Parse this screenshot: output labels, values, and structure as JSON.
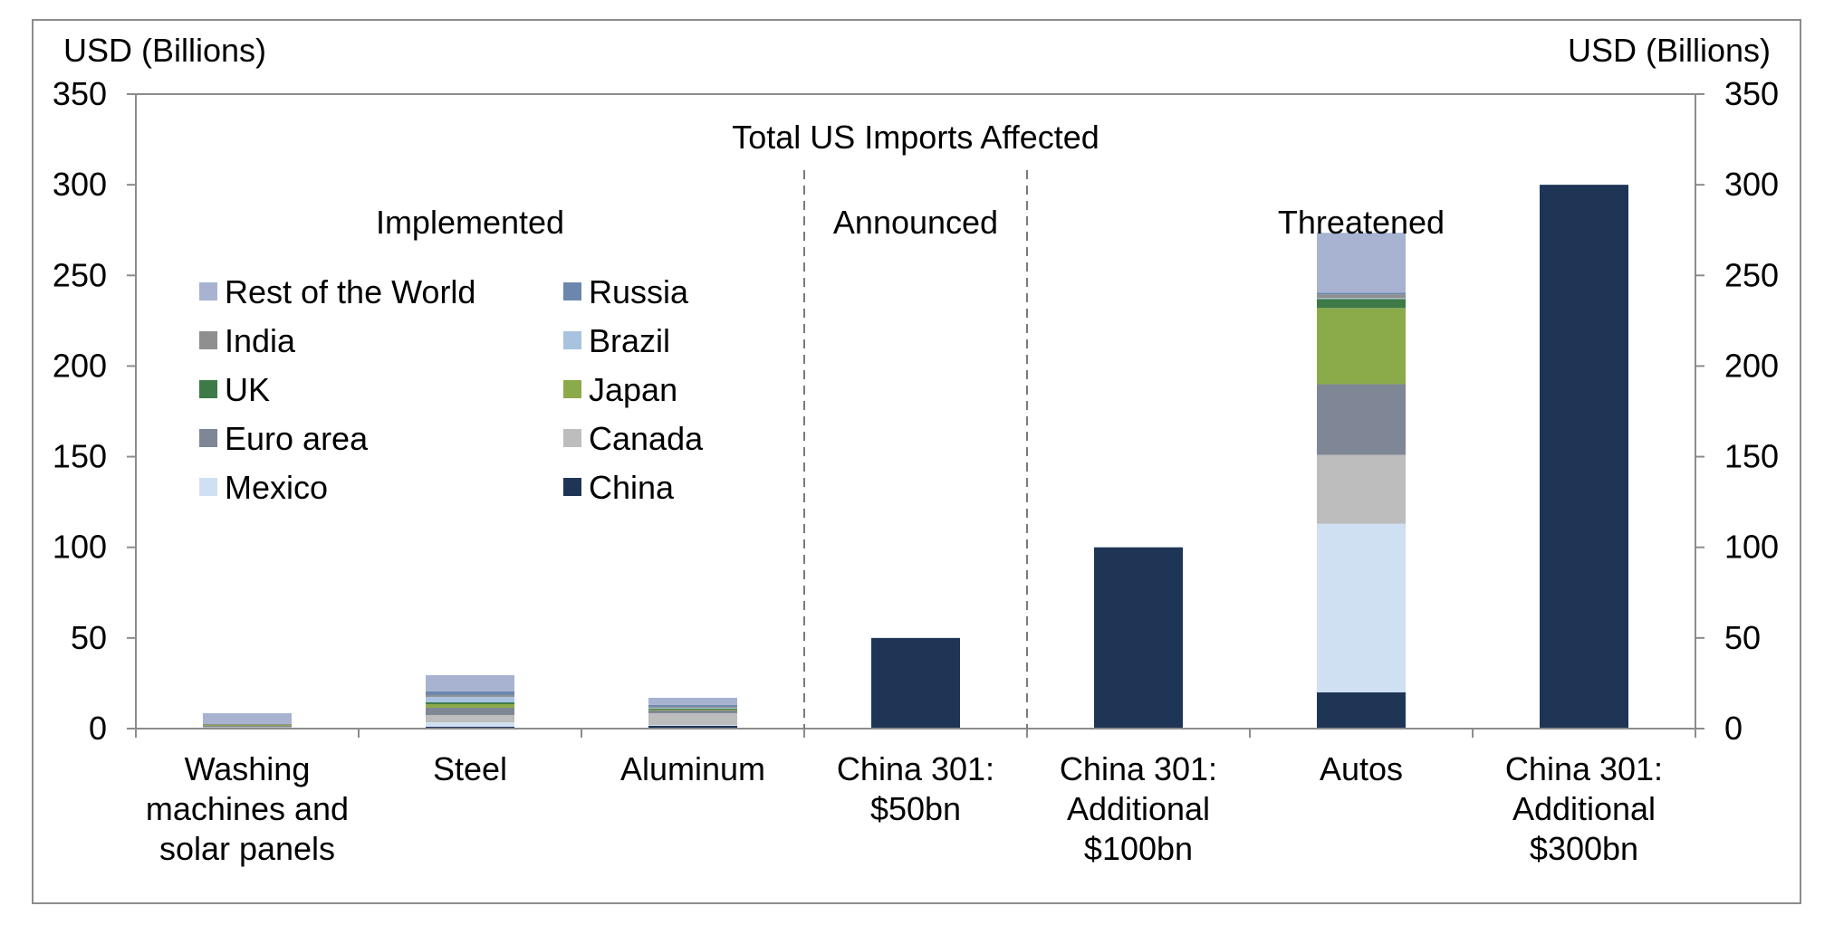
{
  "chart_data": {
    "type": "bar",
    "stacked": true,
    "title": "Total US Imports Affected",
    "y_unit_left": "USD (Billions)",
    "y_unit_right": "USD (Billions)",
    "ylim": [
      0,
      350
    ],
    "yticks": [
      "0",
      "50",
      "100",
      "150",
      "200",
      "250",
      "300",
      "350"
    ],
    "grid": false,
    "legend_placement": "upper-left",
    "categories": [
      "Washing machines and solar panels",
      "Steel",
      "Aluminum",
      "China 301: $50bn",
      "China 301: Additional $100bn",
      "Autos",
      "China 301: Additional $300bn"
    ],
    "category_lines": [
      [
        "Washing",
        "machines and",
        "solar panels"
      ],
      [
        "Steel"
      ],
      [
        "Aluminum"
      ],
      [
        "China 301:",
        "$50bn"
      ],
      [
        "China 301:",
        "Additional",
        "$100bn"
      ],
      [
        "Autos"
      ],
      [
        "China 301:",
        "Additional",
        "$300bn"
      ]
    ],
    "sections": [
      {
        "label": "Implemented",
        "categories": [
          "Washing machines and solar panels",
          "Steel",
          "Aluminum"
        ]
      },
      {
        "label": "Announced",
        "categories": [
          "China 301: $50bn"
        ]
      },
      {
        "label": "Threatened",
        "categories": [
          "China 301: Additional $100bn",
          "Autos",
          "China 301: Additional $300bn"
        ]
      }
    ],
    "legend_order": [
      "Rest of the World",
      "Russia",
      "India",
      "Brazil",
      "UK",
      "Japan",
      "Euro area",
      "Canada",
      "Mexico",
      "China"
    ],
    "series": [
      {
        "name": "China",
        "color": "#1f3556",
        "values": [
          0.5,
          1,
          1.5,
          50,
          100,
          20,
          300
        ]
      },
      {
        "name": "Mexico",
        "color": "#cfe0f2",
        "values": [
          0,
          2.5,
          0.5,
          0,
          0,
          93,
          0
        ]
      },
      {
        "name": "Canada",
        "color": "#bdbdbd",
        "values": [
          0.5,
          4,
          6.5,
          0,
          0,
          38,
          0
        ]
      },
      {
        "name": "Euro area",
        "color": "#7f8695",
        "values": [
          0.5,
          4,
          1.5,
          0,
          0,
          39,
          0
        ]
      },
      {
        "name": "Japan",
        "color": "#8bab4a",
        "values": [
          0.5,
          2,
          0.5,
          0,
          0,
          42,
          0
        ]
      },
      {
        "name": "UK",
        "color": "#3d7a47",
        "values": [
          0,
          1,
          0.5,
          0,
          0,
          5,
          0
        ]
      },
      {
        "name": "Brazil",
        "color": "#a8c3df",
        "values": [
          0,
          3,
          0.5,
          0,
          0,
          0.5,
          0
        ]
      },
      {
        "name": "India",
        "color": "#8f8f8f",
        "values": [
          0.5,
          1,
          0.5,
          0,
          0,
          2,
          0
        ]
      },
      {
        "name": "Russia",
        "color": "#6c87ad",
        "values": [
          0,
          2,
          1,
          0,
          0,
          1,
          0
        ]
      },
      {
        "name": "Rest of the World",
        "color": "#a7b3d1",
        "values": [
          6,
          9,
          4,
          0,
          0,
          33,
          0
        ]
      }
    ]
  }
}
